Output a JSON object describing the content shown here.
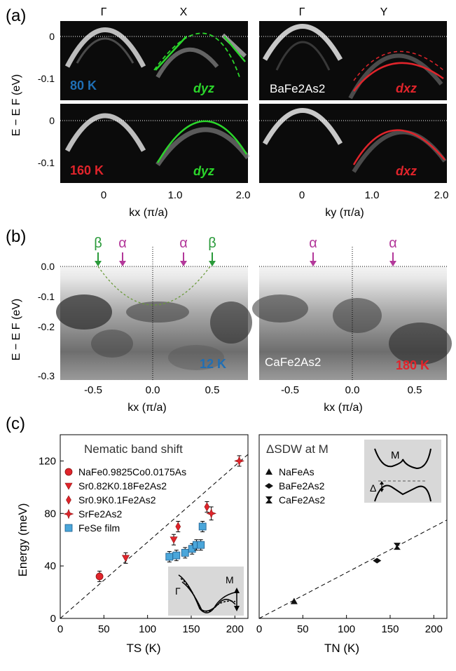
{
  "panel_labels": {
    "a": "(a)",
    "b": "(b)",
    "c": "(c)"
  },
  "colors": {
    "blue": "#1f6fb5",
    "red": "#e0242b",
    "green": "#2bd62b",
    "magenta": "#b3389a",
    "dgreen": "#2a9a3a",
    "sky": "#4aa6da"
  },
  "a": {
    "ylabel": "E − E F (eV)",
    "yticks": [
      "0",
      "-0.1"
    ],
    "left": {
      "sym_top": [
        "Γ",
        "X"
      ],
      "xlabel": "kx (π/a)",
      "xticks": [
        "0",
        "1.0",
        "2.0"
      ],
      "top_temp": "80 K",
      "bottom_temp": "160 K",
      "band": "dyz"
    },
    "right": {
      "sym_top": [
        "Γ",
        "Y"
      ],
      "xlabel": "ky (π/a)",
      "xticks": [
        "0",
        "1.0",
        "2.0"
      ],
      "compound": "BaFe2As2",
      "band": "dxz"
    }
  },
  "b": {
    "ylabel": "E − E F (eV)",
    "yticks": [
      "0.0",
      "-0.1",
      "-0.2",
      "-0.3"
    ],
    "left": {
      "xlabel": "kx (π/a)",
      "xticks": [
        "-0.5",
        "0.0",
        "0.5"
      ],
      "temp": "12 K",
      "arrows": [
        "β",
        "α",
        "α",
        "β"
      ]
    },
    "right": {
      "xlabel": "kx (π/a)",
      "xticks": [
        "-0.5",
        "0.0",
        "0.5"
      ],
      "temp": "180 K",
      "compound": "CaFe2As2",
      "arrows": [
        "α",
        "α"
      ]
    }
  },
  "chart_data": [
    {
      "type": "scatter",
      "title": "Nematic band shift",
      "xlabel": "TS (K)",
      "ylabel": "Energy (meV)",
      "xlim": [
        0,
        215
      ],
      "ylim": [
        0,
        140
      ],
      "xticks": [
        0,
        50,
        100,
        150,
        200
      ],
      "yticks": [
        0,
        40,
        80,
        120
      ],
      "fit_line": {
        "x": [
          0,
          215
        ],
        "y": [
          0,
          125
        ]
      },
      "series": [
        {
          "name": "NaFe0.9825Co0.0175As",
          "marker": "circle",
          "points": [
            [
              45,
              32,
              4
            ]
          ]
        },
        {
          "name": "Sr0.82K0.18Fe2As2",
          "marker": "triangle-down",
          "points": [
            [
              75,
              46,
              4
            ],
            [
              130,
              60,
              4
            ]
          ]
        },
        {
          "name": "Sr0.9K0.1Fe2As2",
          "marker": "diamond",
          "points": [
            [
              135,
              70,
              4
            ],
            [
              168,
              85,
              4
            ]
          ]
        },
        {
          "name": "SrFe2As2",
          "marker": "star",
          "points": [
            [
              205,
              120,
              4
            ],
            [
              173,
              80,
              5
            ]
          ]
        },
        {
          "name": "FeSe film",
          "marker": "square",
          "points": [
            [
              125,
              47,
              4
            ],
            [
              133,
              48,
              4
            ],
            [
              143,
              50,
              4
            ],
            [
              151,
              53,
              4
            ],
            [
              156,
              56,
              4
            ],
            [
              161,
              56,
              4
            ],
            [
              163,
              70,
              4
            ]
          ]
        }
      ],
      "inset": {
        "labels": [
          "Γ",
          "M"
        ]
      }
    },
    {
      "type": "scatter",
      "title": "ΔSDW at M",
      "xlabel": "TN (K)",
      "xlim": [
        0,
        215
      ],
      "ylim": [
        0,
        140
      ],
      "xticks": [
        0,
        50,
        100,
        150,
        200
      ],
      "fit_line": {
        "x": [
          0,
          215
        ],
        "y": [
          0,
          75
        ]
      },
      "series": [
        {
          "name": "NaFeAs",
          "marker": "triangle-up",
          "points": [
            [
              40,
              13
            ]
          ]
        },
        {
          "name": "BaFe2As2",
          "marker": "bowtie-diamond",
          "points": [
            [
              135,
              44
            ]
          ]
        },
        {
          "name": "CaFe2As2",
          "marker": "hourglass",
          "points": [
            [
              158,
              55
            ]
          ]
        }
      ],
      "inset": {
        "labels": [
          "M",
          "Δ"
        ]
      }
    }
  ]
}
